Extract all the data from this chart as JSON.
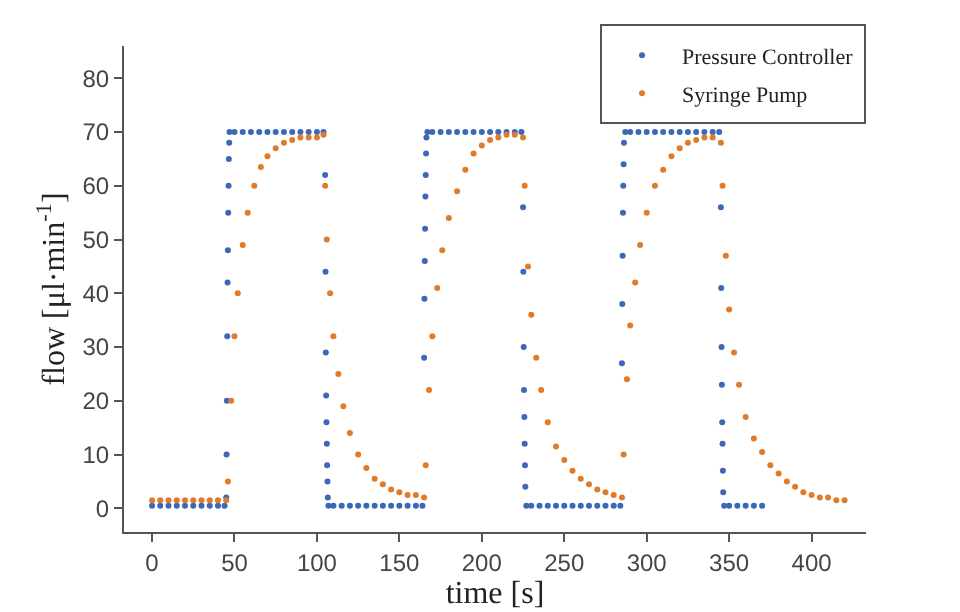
{
  "chart_data": {
    "type": "scatter",
    "xlabel": "time [s]",
    "ylabel": "flow [μl·min$^{-1}$]",
    "xlim": [
      -17,
      433
    ],
    "ylim": [
      -4.4,
      86
    ],
    "xticks": [
      0,
      50,
      100,
      150,
      200,
      250,
      300,
      350,
      400
    ],
    "yticks": [
      0,
      10,
      20,
      30,
      40,
      50,
      60,
      70,
      80
    ],
    "grid": false,
    "legend": "top right",
    "marker": "circle",
    "series": [
      {
        "name": "Pressure Controller",
        "color": "#3b68b8",
        "x": [
          0,
          5,
          10,
          15,
          20,
          25,
          30,
          35,
          40,
          44,
          45,
          45.2,
          45.4,
          45.6,
          45.8,
          46,
          46.2,
          46.4,
          46.6,
          46.8,
          47,
          50,
          55,
          60,
          65,
          70,
          75,
          80,
          85,
          90,
          95,
          100,
          104,
          105,
          105.2,
          105.4,
          105.6,
          105.8,
          106,
          106.2,
          106.4,
          106.6,
          107,
          110,
          115,
          120,
          125,
          130,
          135,
          140,
          145,
          150,
          155,
          160,
          164,
          165,
          165.2,
          165.4,
          165.6,
          165.8,
          166,
          166.2,
          166.4,
          167,
          170,
          175,
          180,
          185,
          190,
          195,
          200,
          205,
          210,
          215,
          220,
          224,
          225,
          225.2,
          225.4,
          225.6,
          225.8,
          226,
          226.2,
          226.4,
          227,
          230,
          235,
          240,
          245,
          250,
          255,
          260,
          265,
          270,
          275,
          280,
          284,
          285,
          285.2,
          285.4,
          285.6,
          285.8,
          286,
          286.2,
          287,
          290,
          295,
          300,
          305,
          310,
          315,
          320,
          325,
          330,
          335,
          340,
          344,
          345,
          345.2,
          345.4,
          345.6,
          345.8,
          346,
          346.2,
          346.4,
          347,
          350,
          355,
          360,
          365,
          370
        ],
        "values": [
          0.5,
          0.5,
          0.5,
          0.5,
          0.5,
          0.5,
          0.5,
          0.5,
          0.5,
          0.5,
          2,
          10,
          20,
          32,
          42,
          48,
          55,
          60,
          65,
          68,
          70,
          70,
          70,
          70,
          70,
          70,
          70,
          70,
          70,
          70,
          70,
          70,
          70,
          62,
          44,
          29,
          21,
          16,
          12,
          8,
          5,
          2,
          0.5,
          0.5,
          0.5,
          0.5,
          0.5,
          0.5,
          0.5,
          0.5,
          0.5,
          0.5,
          0.5,
          0.5,
          0.5,
          28,
          39,
          46,
          52,
          58,
          62,
          66,
          69,
          70,
          70,
          70,
          70,
          70,
          70,
          70,
          70,
          70,
          70,
          70,
          70,
          70,
          56,
          44,
          30,
          22,
          17,
          12,
          8,
          4,
          0.5,
          0.5,
          0.5,
          0.5,
          0.5,
          0.5,
          0.5,
          0.5,
          0.5,
          0.5,
          0.5,
          0.5,
          0.5,
          27,
          38,
          47,
          55,
          60,
          64,
          68,
          70,
          70,
          70,
          70,
          70,
          70,
          70,
          70,
          70,
          70,
          70,
          70,
          70,
          56,
          41,
          30,
          23,
          16,
          12,
          7,
          3,
          0.5,
          0.5,
          0.5,
          0.5,
          0.5,
          0.5
        ]
      },
      {
        "name": "Syringe Pump",
        "color": "#e07b2a",
        "x": [
          0,
          5,
          10,
          15,
          20,
          25,
          30,
          35,
          40,
          45,
          46,
          48,
          50,
          52,
          55,
          58,
          62,
          66,
          70,
          75,
          80,
          85,
          90,
          95,
          100,
          104,
          105,
          106,
          108,
          110,
          113,
          116,
          120,
          125,
          130,
          135,
          140,
          145,
          150,
          155,
          160,
          165,
          166,
          168,
          170,
          173,
          176,
          180,
          185,
          190,
          195,
          200,
          205,
          210,
          215,
          220,
          225,
          226,
          228,
          230,
          233,
          236,
          240,
          245,
          250,
          255,
          260,
          265,
          270,
          275,
          280,
          285,
          286,
          288,
          290,
          293,
          296,
          300,
          305,
          310,
          315,
          320,
          325,
          330,
          335,
          340,
          345,
          346,
          348,
          350,
          353,
          356,
          360,
          365,
          370,
          375,
          380,
          385,
          390,
          395,
          400,
          405,
          410,
          415,
          420
        ],
        "values": [
          1.5,
          1.5,
          1.5,
          1.5,
          1.5,
          1.5,
          1.5,
          1.5,
          1.5,
          1.5,
          5,
          20,
          32,
          40,
          49,
          55,
          60,
          63.5,
          65.5,
          67,
          68,
          68.5,
          69,
          69,
          69,
          69.5,
          60,
          50,
          40,
          32,
          25,
          19,
          14,
          10,
          7.5,
          5.5,
          4.5,
          3.5,
          3,
          2.5,
          2.5,
          2,
          8,
          22,
          32,
          41,
          48,
          54,
          59,
          63,
          66,
          67.5,
          68.5,
          69,
          69.5,
          69.5,
          69,
          60,
          45,
          36,
          28,
          22,
          16,
          11.5,
          9,
          7,
          5.5,
          4.5,
          3.5,
          3,
          2.5,
          2,
          10,
          24,
          34,
          42,
          49,
          55,
          60,
          63,
          65.5,
          67,
          68,
          68.5,
          69,
          69,
          68,
          60,
          47,
          37,
          29,
          23,
          17,
          13,
          10.5,
          8,
          6.5,
          5,
          4,
          3,
          2.5,
          2,
          2,
          1.5,
          1.5
        ]
      }
    ]
  }
}
